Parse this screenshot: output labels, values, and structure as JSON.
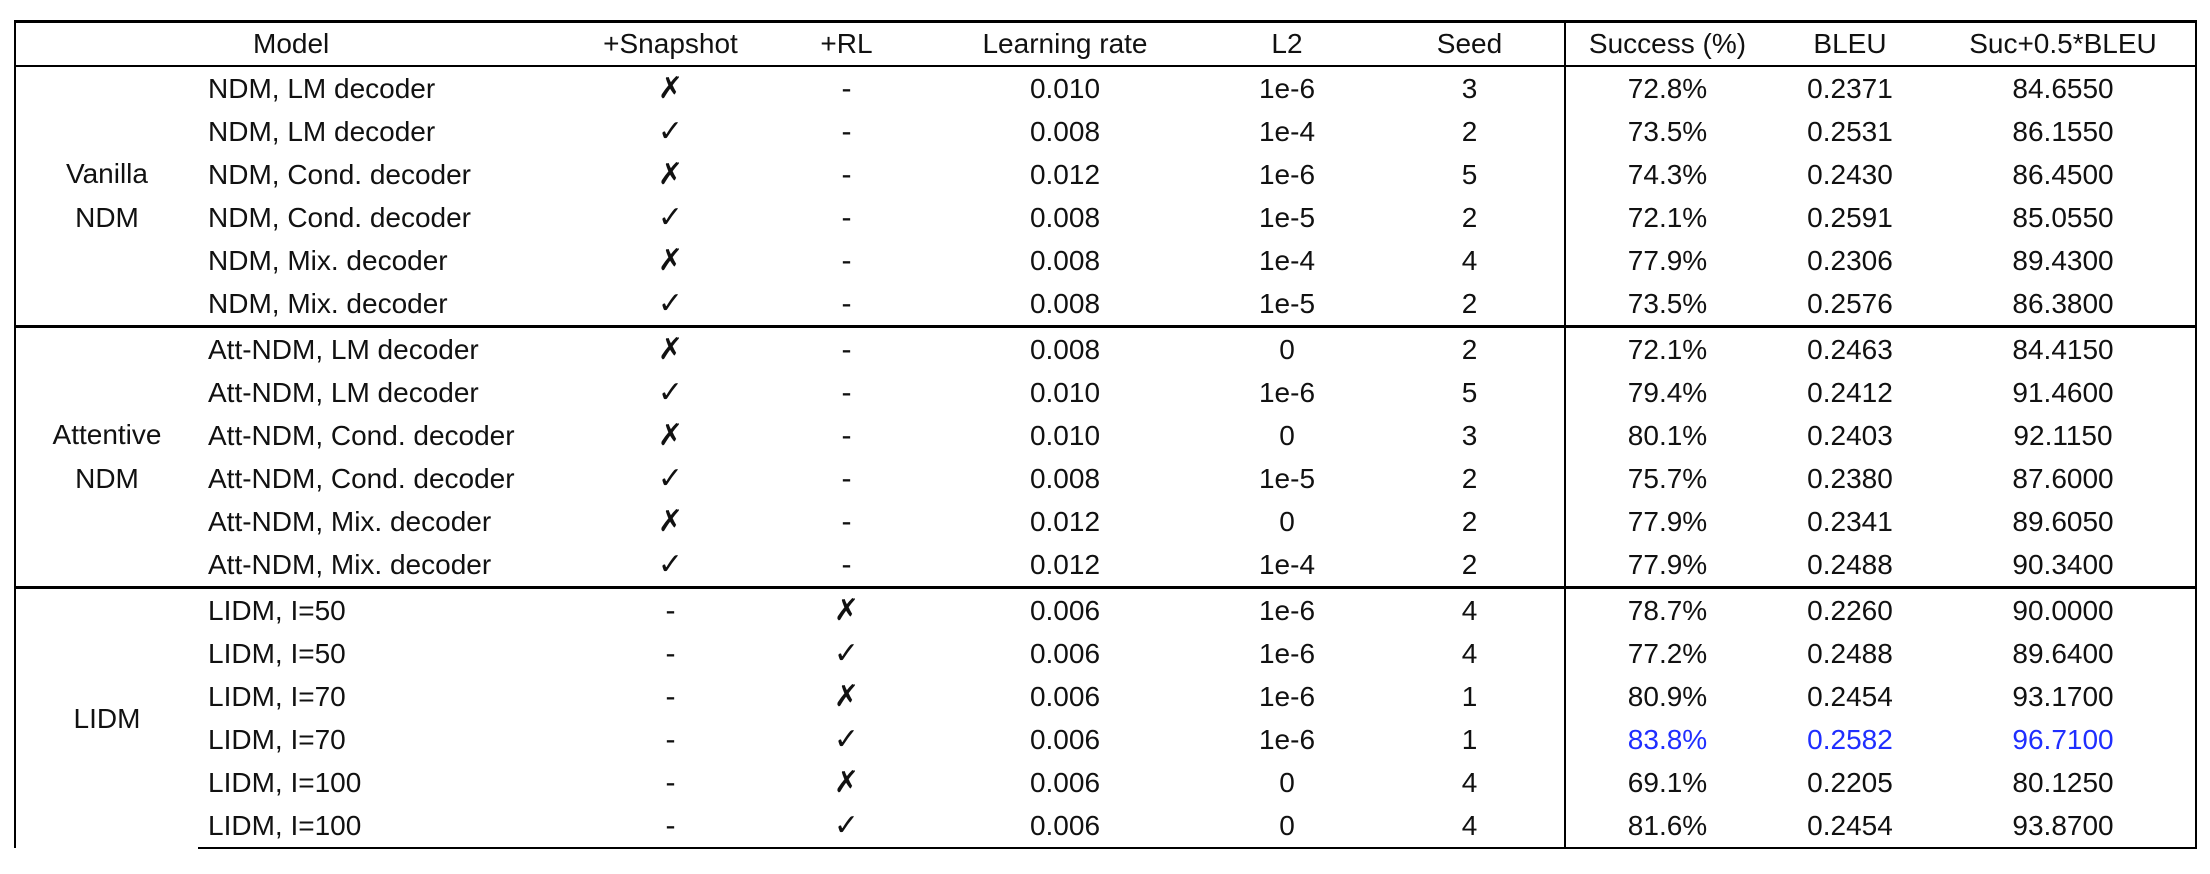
{
  "table": {
    "header": [
      "Model",
      "+Snapshot",
      "+RL",
      "Learning rate",
      "L2",
      "Seed",
      "Success (%)",
      "BLEU",
      "Suc+0.5*BLEU"
    ],
    "groups": [
      {
        "label": [
          "Vanilla",
          "NDM"
        ],
        "rows": [
          [
            "NDM, LM decoder",
            "✗",
            "-",
            "0.010",
            "1e-6",
            "3",
            "72.8%",
            "0.2371",
            "84.6550"
          ],
          [
            "NDM, LM decoder",
            "✓",
            "-",
            "0.008",
            "1e-4",
            "2",
            "73.5%",
            "0.2531",
            "86.1550"
          ],
          [
            "NDM, Cond. decoder",
            "✗",
            "-",
            "0.012",
            "1e-6",
            "5",
            "74.3%",
            "0.2430",
            "86.4500"
          ],
          [
            "NDM, Cond. decoder",
            "✓",
            "-",
            "0.008",
            "1e-5",
            "2",
            "72.1%",
            "0.2591",
            "85.0550"
          ],
          [
            "NDM, Mix. decoder",
            "✗",
            "-",
            "0.008",
            "1e-4",
            "4",
            "77.9%",
            "0.2306",
            "89.4300"
          ],
          [
            "NDM, Mix. decoder",
            "✓",
            "-",
            "0.008",
            "1e-5",
            "2",
            "73.5%",
            "0.2576",
            "86.3800"
          ]
        ]
      },
      {
        "label": [
          "Attentive",
          "NDM"
        ],
        "rows": [
          [
            "Att-NDM, LM decoder",
            "✗",
            "-",
            "0.008",
            "0",
            "2",
            "72.1%",
            "0.2463",
            "84.4150"
          ],
          [
            "Att-NDM, LM decoder",
            "✓",
            "-",
            "0.010",
            "1e-6",
            "5",
            "79.4%",
            "0.2412",
            "91.4600"
          ],
          [
            "Att-NDM, Cond. decoder",
            "✗",
            "-",
            "0.010",
            "0",
            "3",
            "80.1%",
            "0.2403",
            "92.1150"
          ],
          [
            "Att-NDM, Cond. decoder",
            "✓",
            "-",
            "0.008",
            "1e-5",
            "2",
            "75.7%",
            "0.2380",
            "87.6000"
          ],
          [
            "Att-NDM, Mix. decoder",
            "✗",
            "-",
            "0.012",
            "0",
            "2",
            "77.9%",
            "0.2341",
            "89.6050"
          ],
          [
            "Att-NDM, Mix. decoder",
            "✓",
            "-",
            "0.012",
            "1e-4",
            "2",
            "77.9%",
            "0.2488",
            "90.3400"
          ]
        ]
      },
      {
        "label": [
          "LIDM"
        ],
        "rows": [
          [
            "LIDM, I=50",
            "-",
            "✗",
            "0.006",
            "1e-6",
            "4",
            "78.7%",
            "0.2260",
            "90.0000"
          ],
          [
            "LIDM, I=50",
            "-",
            "✓",
            "0.006",
            "1e-6",
            "4",
            "77.2%",
            "0.2488",
            "89.6400"
          ],
          [
            "LIDM, I=70",
            "-",
            "✗",
            "0.006",
            "1e-6",
            "1",
            "80.9%",
            "0.2454",
            "93.1700"
          ],
          [
            "LIDM, I=70",
            "-",
            "✓",
            "0.006",
            "1e-6",
            "1",
            "83.8%",
            "0.2582",
            "96.7100"
          ],
          [
            "LIDM, I=100",
            "-",
            "✗",
            "0.006",
            "0",
            "4",
            "69.1%",
            "0.2205",
            "80.1250"
          ],
          [
            "LIDM, I=100",
            "-",
            "✓",
            "0.006",
            "0",
            "4",
            "81.6%",
            "0.2454",
            "93.8700"
          ]
        ]
      }
    ],
    "highlight": {
      "group": 2,
      "row": 3,
      "columns": [
        6,
        7,
        8
      ],
      "color": "#1f2eff"
    }
  }
}
